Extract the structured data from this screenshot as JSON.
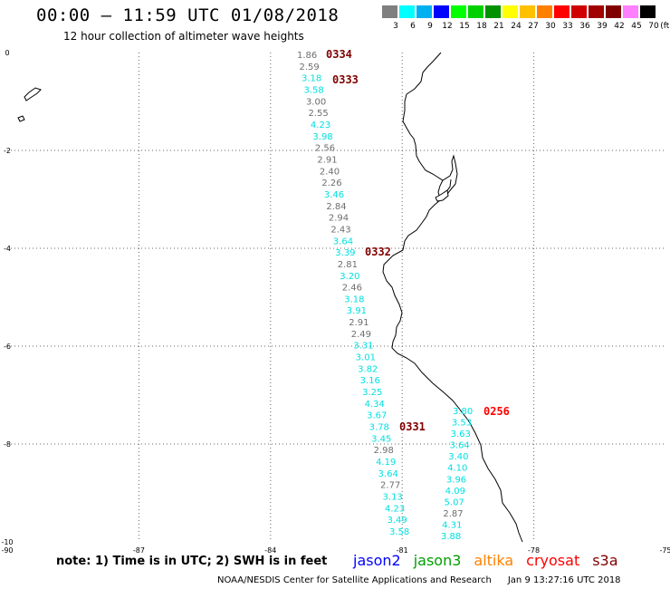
{
  "header": {
    "title": "00:00 – 11:59 UTC 01/08/2018",
    "subtitle": "12 hour collection of altimeter wave heights"
  },
  "colorbar": {
    "unit": "(ft)",
    "bins": [
      {
        "label": "3",
        "color": "#7f7f7f"
      },
      {
        "label": "6",
        "color": "#00ffff"
      },
      {
        "label": "9",
        "color": "#00b0f0"
      },
      {
        "label": "12",
        "color": "#0000ff"
      },
      {
        "label": "15",
        "color": "#00ff00"
      },
      {
        "label": "18",
        "color": "#00d000"
      },
      {
        "label": "21",
        "color": "#009000"
      },
      {
        "label": "24",
        "color": "#ffff00"
      },
      {
        "label": "27",
        "color": "#ffc000"
      },
      {
        "label": "30",
        "color": "#ff8000"
      },
      {
        "label": "33",
        "color": "#ff0000"
      },
      {
        "label": "36",
        "color": "#d00000"
      },
      {
        "label": "39",
        "color": "#a00000"
      },
      {
        "label": "42",
        "color": "#800000"
      },
      {
        "label": "45",
        "color": "#ff80ff"
      },
      {
        "label": "70",
        "color": "#000000"
      }
    ]
  },
  "map": {
    "lon_range": [
      -90,
      -75
    ],
    "lat_range": [
      -10,
      0
    ],
    "lon_ticks": [
      -90,
      -87,
      -84,
      -81,
      -78,
      -75
    ],
    "lat_ticks": [
      0,
      -2,
      -4,
      -6,
      -8,
      -10
    ],
    "grid": "dotted",
    "value_colors": {
      "gray": "#6e6e6e",
      "cyan": "#00e0e0"
    },
    "pass_colors": {
      "dark": "#800000",
      "red": "#ff0000"
    }
  },
  "track1": {
    "values": [
      "1.86",
      "2.59",
      "3.18",
      "3.58",
      "3.00",
      "2.55",
      "4.23",
      "3.98",
      "2.56",
      "2.91",
      "2.40",
      "2.26",
      "3.46",
      "2.84",
      "2.94",
      "2.43",
      "3.64",
      "3.39",
      "2.81",
      "3.20",
      "2.46",
      "3.18",
      "3.91",
      "2.91",
      "2.49",
      "3.31",
      "3.01",
      "3.82",
      "3.16",
      "3.25",
      "4.34",
      "3.67",
      "3.78",
      "3.45",
      "2.98",
      "4.19",
      "3.64",
      "2.77",
      "3.13",
      "4.23",
      "3.49",
      "3.58"
    ],
    "colors": [
      "gray",
      "gray",
      "cyan",
      "cyan",
      "gray",
      "gray",
      "cyan",
      "cyan",
      "gray",
      "gray",
      "gray",
      "gray",
      "cyan",
      "gray",
      "gray",
      "gray",
      "cyan",
      "cyan",
      "gray",
      "cyan",
      "gray",
      "cyan",
      "cyan",
      "gray",
      "gray",
      "cyan",
      "cyan",
      "cyan",
      "cyan",
      "cyan",
      "cyan",
      "cyan",
      "cyan",
      "cyan",
      "gray",
      "cyan",
      "cyan",
      "gray",
      "cyan",
      "cyan",
      "cyan",
      "cyan"
    ]
  },
  "track2": {
    "values": [
      "3.80",
      "3.53",
      "3.63",
      "3.64",
      "3.40",
      "4.10",
      "3.96",
      "4.09",
      "5.07",
      "2.87",
      "4.31",
      "3.88"
    ],
    "colors": [
      "cyan",
      "cyan",
      "cyan",
      "cyan",
      "cyan",
      "cyan",
      "cyan",
      "cyan",
      "cyan",
      "gray",
      "cyan",
      "cyan"
    ]
  },
  "pass_labels": [
    {
      "text": "0334",
      "color": "dark"
    },
    {
      "text": "0333",
      "color": "dark"
    },
    {
      "text": "0332",
      "color": "dark"
    },
    {
      "text": "0331",
      "color": "dark"
    },
    {
      "text": "0256",
      "color": "red"
    }
  ],
  "note": "note: 1) Time is in UTC; 2) SWH is in feet",
  "legend": [
    {
      "label": "jason2",
      "color": "#0000ff"
    },
    {
      "label": "jason3",
      "color": "#00a000"
    },
    {
      "label": "altika",
      "color": "#ff8000"
    },
    {
      "label": "cryosat",
      "color": "#ff0000"
    },
    {
      "label": "s3a",
      "color": "#800000"
    }
  ],
  "footer": {
    "credit": "NOAA/NESDIS Center for Satellite Applications and Research",
    "timestamp": "Jan  9 13:27:16 UTC 2018"
  }
}
